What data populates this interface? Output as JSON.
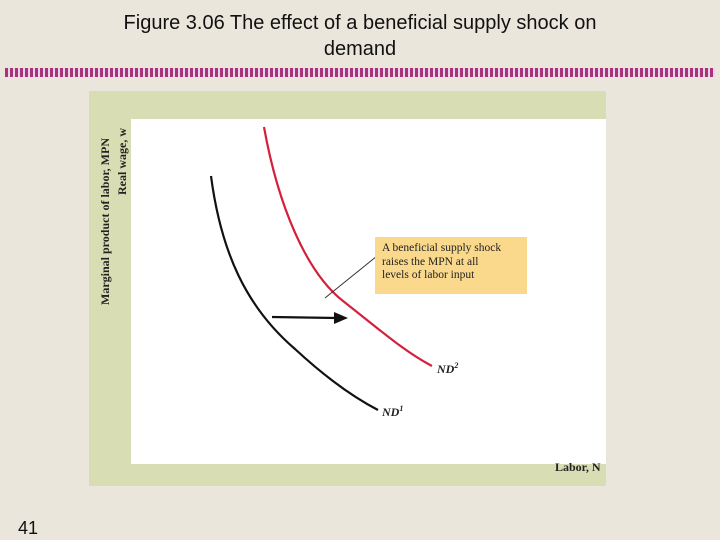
{
  "title": {
    "line1": "Figure 3.06  The effect of a beneficial supply shock on",
    "line2": "demand"
  },
  "slide_number": "41",
  "colors": {
    "nd1": "#111111",
    "nd2": "#d4203c",
    "note_bg": "#fad98c",
    "panel_bg": "#d8ddb3",
    "rule": "#a8327c"
  },
  "chart_data": {
    "type": "line",
    "ylabel_line1": "Marginal product of labor, MPN",
    "ylabel_line2": "Real wage, w",
    "xlabel": "Labor, N",
    "annotation": {
      "line1": "A beneficial supply shock",
      "line2": "raises the MPN at all",
      "line3": "levels of labor input"
    },
    "series": [
      {
        "name": "ND1",
        "label_main": "ND",
        "label_sup": "1"
      },
      {
        "name": "ND2",
        "label_main": "ND",
        "label_sup": "2"
      }
    ],
    "arrow": "shift right from ND1 to ND2"
  }
}
